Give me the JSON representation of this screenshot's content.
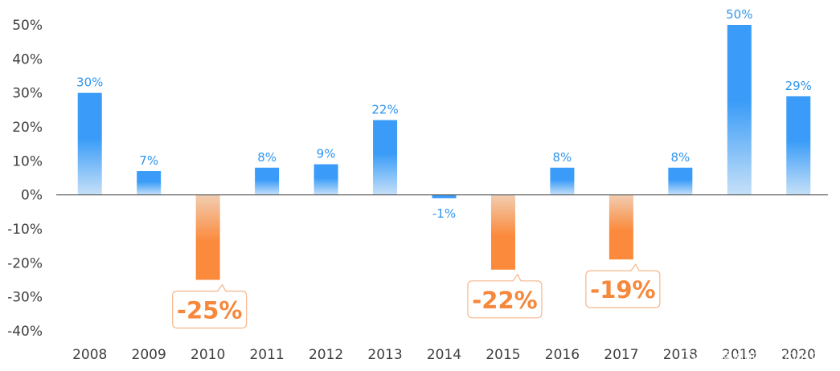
{
  "chart_data": {
    "type": "bar",
    "categories": [
      "2008",
      "2009",
      "2010",
      "2011",
      "2012",
      "2013",
      "2014",
      "2015",
      "2016",
      "2017",
      "2018",
      "2019",
      "2020"
    ],
    "values": [
      30,
      7,
      -25,
      8,
      9,
      22,
      -1,
      -22,
      8,
      -19,
      8,
      50,
      29
    ],
    "data_labels": [
      "30%",
      "7%",
      "-25%",
      "8%",
      "9%",
      "22%",
      "-1%",
      "-22%",
      "8%",
      "-19%",
      "8%",
      "50%",
      "29%"
    ],
    "y_ticks": [
      50,
      40,
      30,
      20,
      10,
      0,
      -10,
      -20,
      -30,
      -40
    ],
    "y_tick_labels": [
      "50%",
      "40%",
      "30%",
      "20%",
      "10%",
      "0%",
      "-10%",
      "-20%",
      "-30%",
      "-40%"
    ],
    "ylim": [
      -40,
      50
    ],
    "title": "",
    "xlabel": "",
    "ylabel": "",
    "grid": false,
    "colors": {
      "positive": "#3a9cf8",
      "positive_light": "#c6e0f8",
      "negative": "#fb8a3c",
      "negative_light": "#f1cdb1",
      "negative_label": "#f5883b",
      "positive_label": "#2f95ee",
      "axis": "#555555",
      "tick_text": "#404040"
    }
  },
  "watermark": "CSDN @xingbuxing_py"
}
